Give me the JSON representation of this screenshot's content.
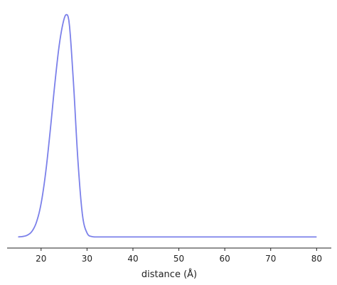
{
  "chart_data": {
    "type": "line",
    "title": "",
    "xlabel": "distance (Å)",
    "ylabel": "",
    "xlim": [
      12.6,
      83.2
    ],
    "ylim": [
      -0.05,
      1.04
    ],
    "grid": false,
    "legend": "none",
    "x_ticks": [
      20,
      30,
      40,
      50,
      60,
      70,
      80
    ],
    "y_ticks": [],
    "series": [
      {
        "color": "#7b80ea",
        "x": [
          15,
          16,
          17,
          18,
          19,
          20,
          21,
          22,
          23,
          24,
          25,
          25.5,
          26,
          27,
          28,
          29,
          30,
          31,
          32,
          35,
          40,
          50,
          60,
          70,
          80
        ],
        "y": [
          0.0,
          0.002,
          0.008,
          0.025,
          0.067,
          0.15,
          0.29,
          0.48,
          0.69,
          0.87,
          0.98,
          1.0,
          0.98,
          0.71,
          0.35,
          0.1,
          0.018,
          0.002,
          0.0,
          0.0,
          0.0,
          0.0,
          0.0,
          0.0,
          0.0
        ]
      }
    ]
  }
}
